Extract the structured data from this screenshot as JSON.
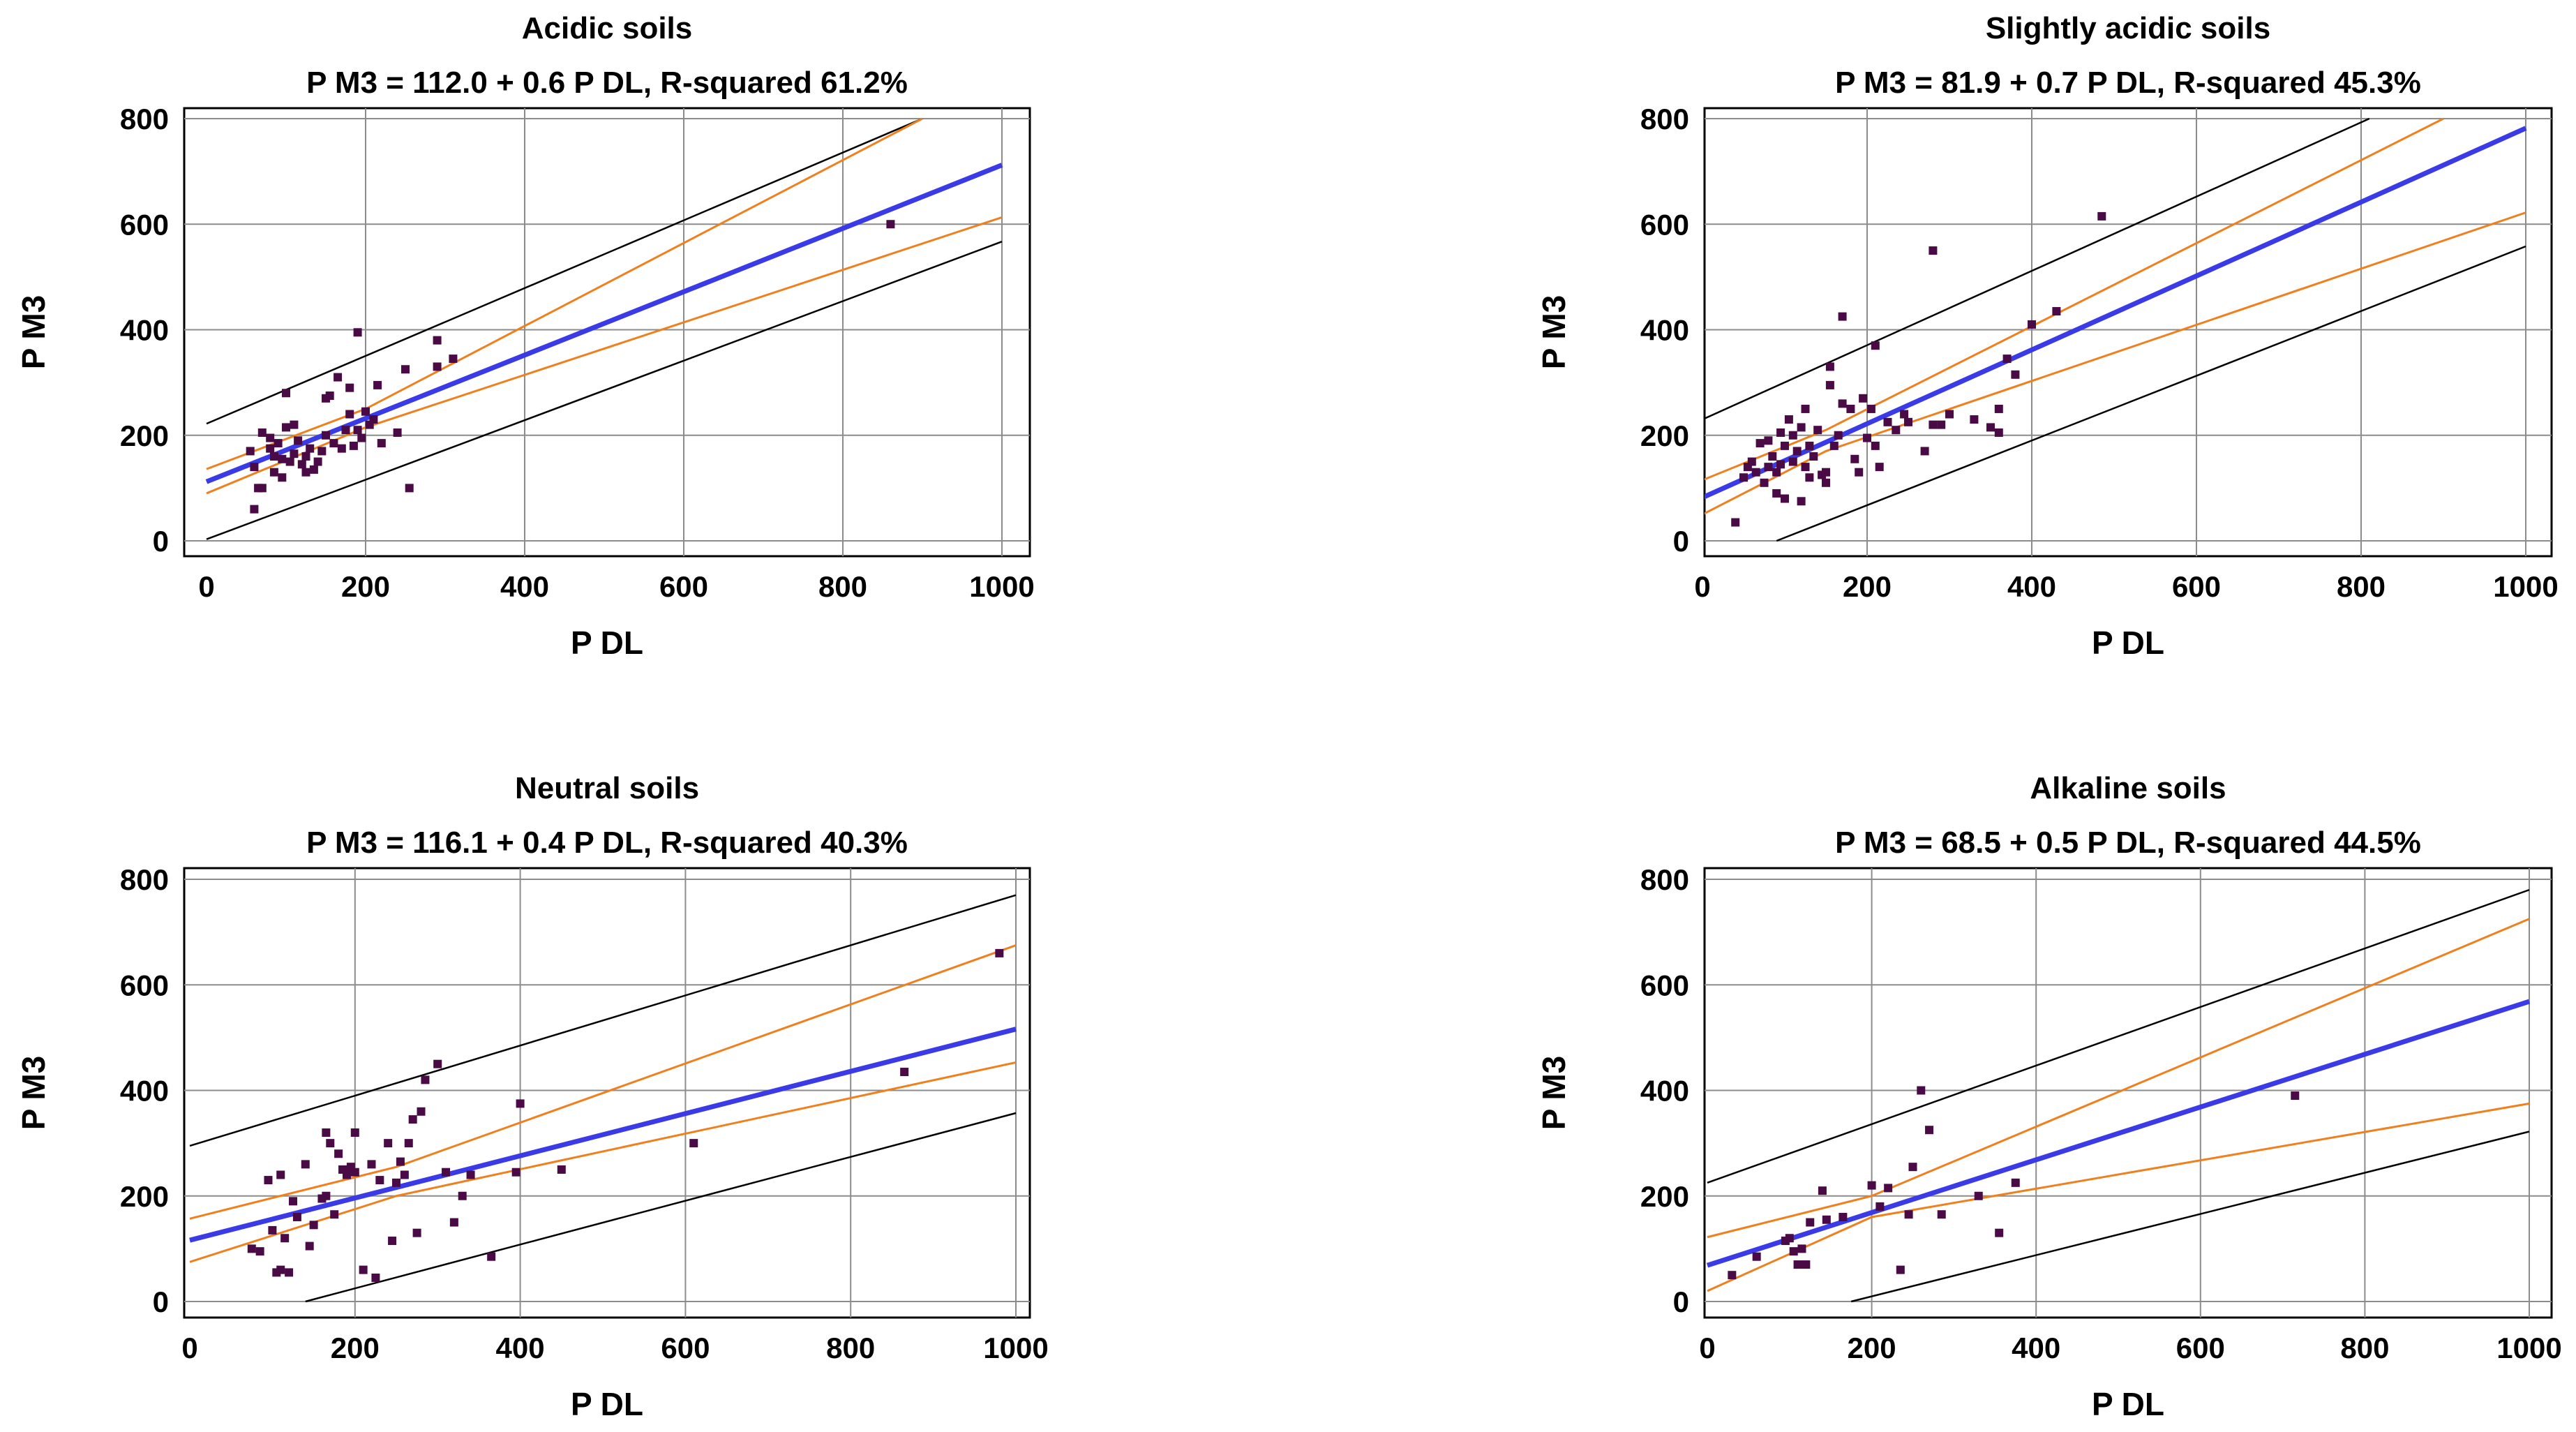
{
  "figure_title": "",
  "colors": {
    "fit_line": "#3a3ae6",
    "confidence_band": "#f07f1e",
    "prediction_band": "#000000",
    "points": "#4a0a45",
    "grid": "#8c8c8c"
  },
  "chart_data": [
    {
      "type": "scatter",
      "title": "Acidic soils",
      "subtitle": "P M3 = 112.0 + 0.6 P DL, R-squared 61.2%",
      "xlabel": "P DL",
      "ylabel": "P M3",
      "xlim": [
        0,
        1000
      ],
      "ylim": [
        0,
        800
      ],
      "xticks": [
        0,
        200,
        400,
        600,
        800,
        1000
      ],
      "yticks": [
        0,
        200,
        400,
        600,
        800
      ],
      "grid": true,
      "fit": {
        "intercept": 112.0,
        "slope": 0.6
      },
      "x_range": [
        0,
        1000
      ],
      "confidence_band": {
        "lower": [
          [
            0,
            90
          ],
          [
            200,
            215
          ],
          [
            1000,
            613
          ]
        ],
        "upper": [
          [
            0,
            136
          ],
          [
            200,
            250
          ],
          [
            900,
            800
          ]
        ]
      },
      "prediction_band": {
        "lower": [
          [
            0,
            3
          ],
          [
            1000,
            567
          ]
        ],
        "upper": [
          [
            0,
            222
          ],
          [
            900,
            800
          ]
        ]
      },
      "points": [
        [
          60,
          140
        ],
        [
          70,
          100
        ],
        [
          55,
          170
        ],
        [
          60,
          60
        ],
        [
          65,
          100
        ],
        [
          70,
          205
        ],
        [
          80,
          195
        ],
        [
          80,
          175
        ],
        [
          85,
          160
        ],
        [
          85,
          130
        ],
        [
          90,
          185
        ],
        [
          95,
          155
        ],
        [
          95,
          120
        ],
        [
          100,
          280
        ],
        [
          100,
          215
        ],
        [
          105,
          150
        ],
        [
          110,
          220
        ],
        [
          110,
          165
        ],
        [
          115,
          190
        ],
        [
          120,
          145
        ],
        [
          125,
          160
        ],
        [
          125,
          130
        ],
        [
          130,
          175
        ],
        [
          135,
          135
        ],
        [
          140,
          150
        ],
        [
          145,
          170
        ],
        [
          150,
          200
        ],
        [
          150,
          270
        ],
        [
          155,
          275
        ],
        [
          160,
          185
        ],
        [
          165,
          310
        ],
        [
          170,
          175
        ],
        [
          175,
          210
        ],
        [
          180,
          240
        ],
        [
          180,
          290
        ],
        [
          185,
          180
        ],
        [
          190,
          395
        ],
        [
          190,
          210
        ],
        [
          195,
          195
        ],
        [
          200,
          245
        ],
        [
          205,
          220
        ],
        [
          210,
          230
        ],
        [
          215,
          295
        ],
        [
          220,
          185
        ],
        [
          240,
          205
        ],
        [
          250,
          325
        ],
        [
          255,
          100
        ],
        [
          290,
          380
        ],
        [
          290,
          330
        ],
        [
          310,
          345
        ],
        [
          860,
          600
        ]
      ]
    },
    {
      "type": "scatter",
      "title": "Slightly acidic soils",
      "subtitle": "P M3 = 81.9 + 0.7 P DL, R-squared 45.3%",
      "xlabel": "P DL",
      "ylabel": "P M3",
      "xlim": [
        0,
        1000
      ],
      "ylim": [
        0,
        800
      ],
      "xticks": [
        0,
        200,
        400,
        600,
        800,
        1000
      ],
      "yticks": [
        0,
        200,
        400,
        600,
        800
      ],
      "grid": true,
      "fit": {
        "intercept": 81.9,
        "slope": 0.7
      },
      "x_range": [
        0,
        1000
      ],
      "confidence_band": {
        "lower": [
          [
            0,
            50
          ],
          [
            150,
            170
          ],
          [
            1000,
            622
          ]
        ],
        "upper": [
          [
            0,
            115
          ],
          [
            150,
            210
          ],
          [
            900,
            800
          ]
        ]
      },
      "prediction_band": {
        "lower": [
          [
            90,
            0
          ],
          [
            1000,
            558
          ]
        ],
        "upper": [
          [
            0,
            230
          ],
          [
            810,
            800
          ]
        ]
      },
      "points": [
        [
          40,
          35
        ],
        [
          50,
          120
        ],
        [
          55,
          140
        ],
        [
          60,
          150
        ],
        [
          65,
          130
        ],
        [
          70,
          185
        ],
        [
          75,
          110
        ],
        [
          80,
          140
        ],
        [
          80,
          190
        ],
        [
          85,
          160
        ],
        [
          90,
          90
        ],
        [
          90,
          130
        ],
        [
          95,
          145
        ],
        [
          95,
          205
        ],
        [
          100,
          180
        ],
        [
          100,
          80
        ],
        [
          105,
          230
        ],
        [
          110,
          200
        ],
        [
          110,
          150
        ],
        [
          115,
          170
        ],
        [
          120,
          215
        ],
        [
          120,
          75
        ],
        [
          125,
          250
        ],
        [
          125,
          140
        ],
        [
          130,
          180
        ],
        [
          130,
          120
        ],
        [
          135,
          160
        ],
        [
          140,
          210
        ],
        [
          145,
          125
        ],
        [
          150,
          130
        ],
        [
          150,
          110
        ],
        [
          155,
          330
        ],
        [
          155,
          295
        ],
        [
          160,
          180
        ],
        [
          165,
          200
        ],
        [
          170,
          260
        ],
        [
          170,
          425
        ],
        [
          180,
          250
        ],
        [
          185,
          155
        ],
        [
          190,
          130
        ],
        [
          195,
          270
        ],
        [
          200,
          195
        ],
        [
          205,
          250
        ],
        [
          210,
          180
        ],
        [
          210,
          370
        ],
        [
          215,
          140
        ],
        [
          225,
          225
        ],
        [
          235,
          210
        ],
        [
          245,
          240
        ],
        [
          250,
          225
        ],
        [
          270,
          170
        ],
        [
          280,
          550
        ],
        [
          280,
          220
        ],
        [
          290,
          220
        ],
        [
          300,
          240
        ],
        [
          330,
          230
        ],
        [
          350,
          215
        ],
        [
          360,
          205
        ],
        [
          360,
          250
        ],
        [
          370,
          345
        ],
        [
          380,
          315
        ],
        [
          400,
          410
        ],
        [
          430,
          435
        ],
        [
          485,
          615
        ]
      ]
    },
    {
      "type": "scatter",
      "title": "Neutral soils",
      "subtitle": "P M3 = 116.1 + 0.4 P DL, R-squared 40.3%",
      "xlabel": "P DL",
      "ylabel": "P M3",
      "xlim": [
        0,
        1000
      ],
      "ylim": [
        0,
        800
      ],
      "xticks": [
        0,
        200,
        400,
        600,
        800,
        1000
      ],
      "yticks": [
        0,
        200,
        400,
        600,
        800
      ],
      "grid": true,
      "fit": {
        "intercept": 116.1,
        "slope": 0.4
      },
      "x_range": [
        0,
        1000
      ],
      "confidence_band": {
        "lower": [
          [
            0,
            75
          ],
          [
            250,
            200
          ],
          [
            1000,
            453
          ]
        ],
        "upper": [
          [
            0,
            157
          ],
          [
            250,
            255
          ],
          [
            1000,
            675
          ]
        ]
      },
      "prediction_band": {
        "lower": [
          [
            140,
            0
          ],
          [
            1000,
            357
          ]
        ],
        "upper": [
          [
            0,
            295
          ],
          [
            1000,
            770
          ]
        ]
      },
      "points": [
        [
          75,
          100
        ],
        [
          85,
          95
        ],
        [
          95,
          230
        ],
        [
          100,
          135
        ],
        [
          105,
          55
        ],
        [
          110,
          60
        ],
        [
          110,
          240
        ],
        [
          115,
          120
        ],
        [
          120,
          55
        ],
        [
          125,
          190
        ],
        [
          130,
          160
        ],
        [
          140,
          260
        ],
        [
          145,
          105
        ],
        [
          150,
          145
        ],
        [
          160,
          195
        ],
        [
          165,
          320
        ],
        [
          165,
          200
        ],
        [
          170,
          300
        ],
        [
          175,
          165
        ],
        [
          180,
          280
        ],
        [
          185,
          250
        ],
        [
          190,
          240
        ],
        [
          195,
          255
        ],
        [
          200,
          245
        ],
        [
          200,
          320
        ],
        [
          210,
          60
        ],
        [
          220,
          260
        ],
        [
          225,
          45
        ],
        [
          230,
          230
        ],
        [
          240,
          300
        ],
        [
          245,
          115
        ],
        [
          250,
          225
        ],
        [
          255,
          265
        ],
        [
          260,
          240
        ],
        [
          265,
          300
        ],
        [
          270,
          345
        ],
        [
          275,
          130
        ],
        [
          280,
          360
        ],
        [
          285,
          420
        ],
        [
          300,
          450
        ],
        [
          310,
          245
        ],
        [
          320,
          150
        ],
        [
          330,
          200
        ],
        [
          340,
          240
        ],
        [
          365,
          85
        ],
        [
          395,
          245
        ],
        [
          400,
          375
        ],
        [
          450,
          250
        ],
        [
          610,
          300
        ],
        [
          865,
          435
        ],
        [
          980,
          660
        ]
      ]
    },
    {
      "type": "scatter",
      "title": "Alkaline soils",
      "subtitle": "P M3 = 68.5 + 0.5 P DL, R-squared 44.5%",
      "xlabel": "P DL",
      "ylabel": "P M3",
      "xlim": [
        0,
        1000
      ],
      "ylim": [
        0,
        800
      ],
      "xticks": [
        0,
        200,
        400,
        600,
        800,
        1000
      ],
      "yticks": [
        0,
        200,
        400,
        600,
        800
      ],
      "grid": true,
      "fit": {
        "intercept": 68.5,
        "slope": 0.5
      },
      "x_range": [
        0,
        1000
      ],
      "confidence_band": {
        "lower": [
          [
            0,
            20
          ],
          [
            200,
            160
          ],
          [
            1000,
            375
          ]
        ],
        "upper": [
          [
            0,
            122
          ],
          [
            200,
            200
          ],
          [
            1000,
            725
          ]
        ]
      },
      "prediction_band": {
        "lower": [
          [
            175,
            0
          ],
          [
            1000,
            322
          ]
        ],
        "upper": [
          [
            0,
            225
          ],
          [
            1000,
            780
          ]
        ]
      },
      "points": [
        [
          30,
          50
        ],
        [
          60,
          85
        ],
        [
          95,
          115
        ],
        [
          100,
          120
        ],
        [
          105,
          95
        ],
        [
          110,
          70
        ],
        [
          115,
          100
        ],
        [
          120,
          70
        ],
        [
          125,
          150
        ],
        [
          140,
          210
        ],
        [
          145,
          155
        ],
        [
          165,
          160
        ],
        [
          200,
          220
        ],
        [
          210,
          180
        ],
        [
          220,
          215
        ],
        [
          235,
          60
        ],
        [
          245,
          165
        ],
        [
          250,
          255
        ],
        [
          260,
          400
        ],
        [
          270,
          325
        ],
        [
          285,
          165
        ],
        [
          330,
          200
        ],
        [
          355,
          130
        ],
        [
          375,
          225
        ],
        [
          715,
          390
        ]
      ]
    }
  ]
}
